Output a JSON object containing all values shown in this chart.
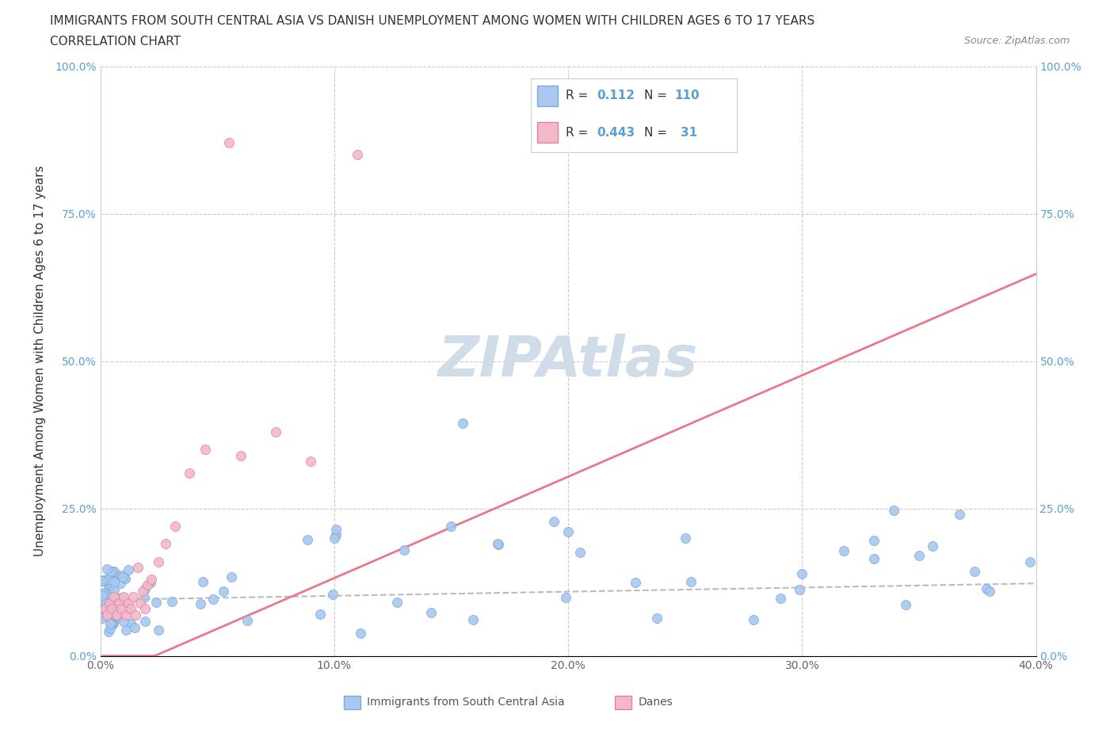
{
  "title": "IMMIGRANTS FROM SOUTH CENTRAL ASIA VS DANISH UNEMPLOYMENT AMONG WOMEN WITH CHILDREN AGES 6 TO 17 YEARS",
  "subtitle": "CORRELATION CHART",
  "source": "Source: ZipAtlas.com",
  "ylabel": "Unemployment Among Women with Children Ages 6 to 17 years",
  "xlim": [
    0.0,
    0.4
  ],
  "ylim": [
    0.0,
    1.0
  ],
  "xticks": [
    0.0,
    0.1,
    0.2,
    0.3,
    0.4
  ],
  "yticks": [
    0.0,
    0.25,
    0.5,
    0.75,
    1.0
  ],
  "xticklabels": [
    "0.0%",
    "10.0%",
    "20.0%",
    "30.0%",
    "40.0%"
  ],
  "yticklabels": [
    "0.0%",
    "25.0%",
    "50.0%",
    "75.0%",
    "100.0%"
  ],
  "blue_color": "#a8c8f0",
  "blue_edge": "#7aaad8",
  "pink_color": "#f5b8c8",
  "pink_edge": "#e080a0",
  "blue_trend_color": "#bbbbbb",
  "pink_trend_color": "#e8788a",
  "blue_R": 0.112,
  "blue_N": 110,
  "pink_R": 0.443,
  "pink_N": 31,
  "legend_label_blue": "Immigrants from South Central Asia",
  "legend_label_pink": "Danes",
  "R_label_color": "#333333",
  "RN_value_color": "#5a9fd4",
  "watermark_color": "#d0dce8",
  "blue_trend_intercept": 0.095,
  "blue_trend_slope": 0.07,
  "pink_trend_intercept": -0.04,
  "pink_trend_slope": 1.72
}
